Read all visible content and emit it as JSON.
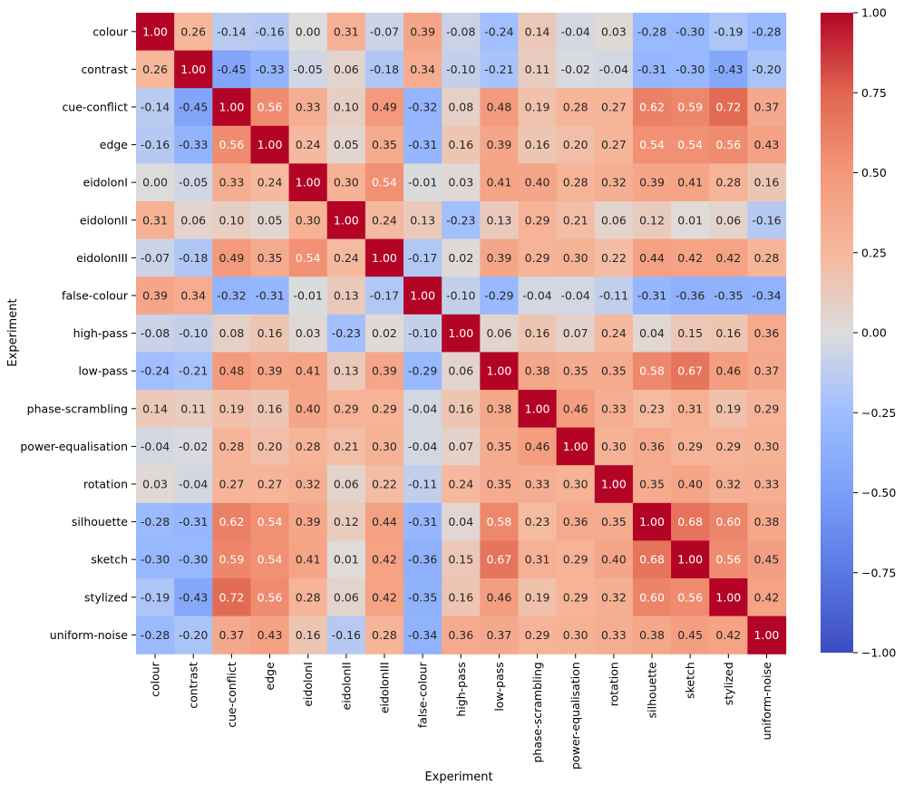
{
  "chart_data": {
    "type": "heatmap",
    "xlabel": "Experiment",
    "ylabel": "Experiment",
    "value_format": "2 decimals",
    "colormap": "coolwarm",
    "clim": [
      -1.0,
      1.0
    ],
    "colorbar_ticks": [
      "-1.00",
      "-0.75",
      "-0.50",
      "-0.25",
      "0.00",
      "0.25",
      "0.50",
      "0.75",
      "1.00"
    ],
    "categories": [
      "colour",
      "contrast",
      "cue-conflict",
      "edge",
      "eidolonI",
      "eidolonII",
      "eidolonIII",
      "false-colour",
      "high-pass",
      "low-pass",
      "phase-scrambling",
      "power-equalisation",
      "rotation",
      "silhouette",
      "sketch",
      "stylized",
      "uniform-noise"
    ],
    "matrix": [
      [
        1.0,
        0.26,
        -0.14,
        -0.16,
        0.0,
        0.31,
        -0.07,
        0.39,
        -0.08,
        -0.24,
        0.14,
        -0.04,
        0.03,
        -0.28,
        -0.3,
        -0.19,
        -0.28
      ],
      [
        0.26,
        1.0,
        -0.45,
        -0.33,
        -0.05,
        0.06,
        -0.18,
        0.34,
        -0.1,
        -0.21,
        0.11,
        -0.02,
        -0.04,
        -0.31,
        -0.3,
        -0.43,
        -0.2
      ],
      [
        -0.14,
        -0.45,
        1.0,
        0.56,
        0.33,
        0.1,
        0.49,
        -0.32,
        0.08,
        0.48,
        0.19,
        0.28,
        0.27,
        0.62,
        0.59,
        0.72,
        0.37
      ],
      [
        -0.16,
        -0.33,
        0.56,
        1.0,
        0.24,
        0.05,
        0.35,
        -0.31,
        0.16,
        0.39,
        0.16,
        0.2,
        0.27,
        0.54,
        0.54,
        0.56,
        0.43
      ],
      [
        0.0,
        -0.05,
        0.33,
        0.24,
        1.0,
        0.3,
        0.54,
        -0.01,
        0.03,
        0.41,
        0.4,
        0.28,
        0.32,
        0.39,
        0.41,
        0.28,
        0.16
      ],
      [
        0.31,
        0.06,
        0.1,
        0.05,
        0.3,
        1.0,
        0.24,
        0.13,
        -0.23,
        0.13,
        0.29,
        0.21,
        0.06,
        0.12,
        0.01,
        0.06,
        -0.16
      ],
      [
        -0.07,
        -0.18,
        0.49,
        0.35,
        0.54,
        0.24,
        1.0,
        -0.17,
        0.02,
        0.39,
        0.29,
        0.3,
        0.22,
        0.44,
        0.42,
        0.42,
        0.28
      ],
      [
        0.39,
        0.34,
        -0.32,
        -0.31,
        -0.01,
        0.13,
        -0.17,
        1.0,
        -0.1,
        -0.29,
        -0.04,
        -0.04,
        -0.11,
        -0.31,
        -0.36,
        -0.35,
        -0.34
      ],
      [
        -0.08,
        -0.1,
        0.08,
        0.16,
        0.03,
        -0.23,
        0.02,
        -0.1,
        1.0,
        0.06,
        0.16,
        0.07,
        0.24,
        0.04,
        0.15,
        0.16,
        0.36
      ],
      [
        -0.24,
        -0.21,
        0.48,
        0.39,
        0.41,
        0.13,
        0.39,
        -0.29,
        0.06,
        1.0,
        0.38,
        0.35,
        0.35,
        0.58,
        0.67,
        0.46,
        0.37
      ],
      [
        0.14,
        0.11,
        0.19,
        0.16,
        0.4,
        0.29,
        0.29,
        -0.04,
        0.16,
        0.38,
        1.0,
        0.46,
        0.33,
        0.23,
        0.31,
        0.19,
        0.29
      ],
      [
        -0.04,
        -0.02,
        0.28,
        0.2,
        0.28,
        0.21,
        0.3,
        -0.04,
        0.07,
        0.35,
        0.46,
        1.0,
        0.3,
        0.36,
        0.29,
        0.29,
        0.3
      ],
      [
        0.03,
        -0.04,
        0.27,
        0.27,
        0.32,
        0.06,
        0.22,
        -0.11,
        0.24,
        0.35,
        0.33,
        0.3,
        1.0,
        0.35,
        0.4,
        0.32,
        0.33
      ],
      [
        -0.28,
        -0.31,
        0.62,
        0.54,
        0.39,
        0.12,
        0.44,
        -0.31,
        0.04,
        0.58,
        0.23,
        0.36,
        0.35,
        1.0,
        0.68,
        0.6,
        0.38
      ],
      [
        -0.3,
        -0.3,
        0.59,
        0.54,
        0.41,
        0.01,
        0.42,
        -0.36,
        0.15,
        0.67,
        0.31,
        0.29,
        0.4,
        0.68,
        1.0,
        0.56,
        0.45
      ],
      [
        -0.19,
        -0.43,
        0.72,
        0.56,
        0.28,
        0.06,
        0.42,
        -0.35,
        0.16,
        0.46,
        0.19,
        0.29,
        0.32,
        0.6,
        0.56,
        1.0,
        0.42
      ],
      [
        -0.28,
        -0.2,
        0.37,
        0.43,
        0.16,
        -0.16,
        0.28,
        -0.34,
        0.36,
        0.37,
        0.29,
        0.3,
        0.33,
        0.38,
        0.45,
        0.42,
        1.0
      ]
    ]
  }
}
